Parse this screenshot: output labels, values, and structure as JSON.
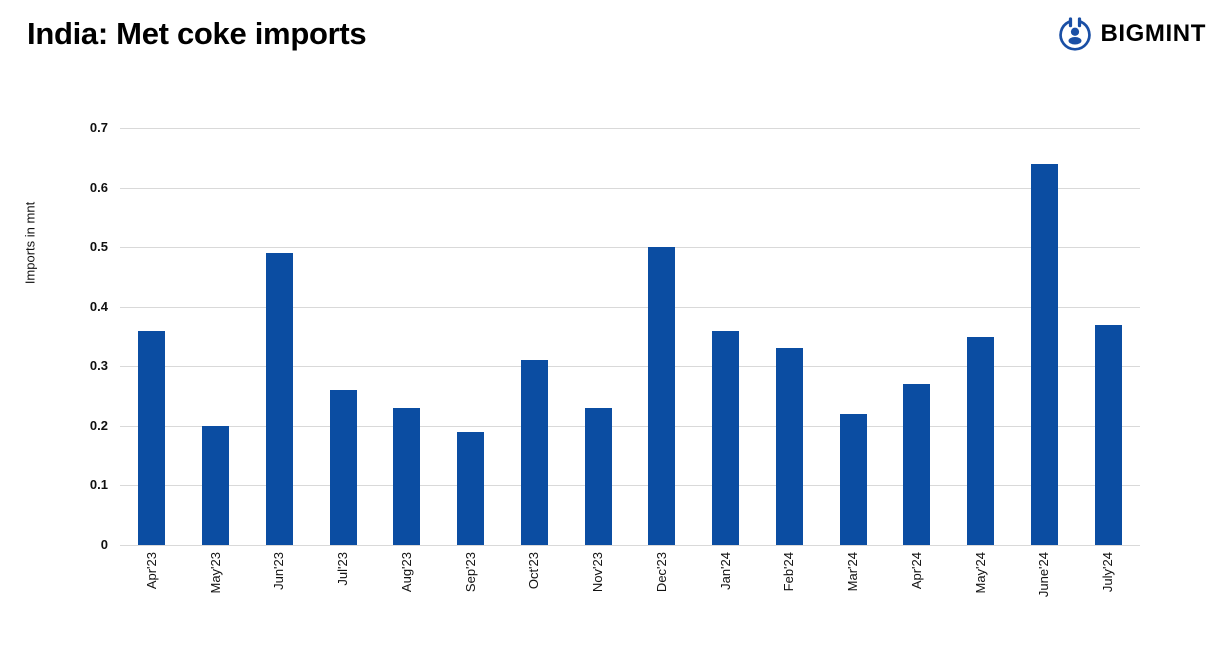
{
  "header": {
    "title": "India: Met coke imports",
    "brand": "BIGMINT",
    "brand_color": "#1a4fa5"
  },
  "chart_data": {
    "type": "bar",
    "title": "India: Met coke imports",
    "categories": [
      "Apr'23",
      "May'23",
      "Jun'23",
      "Jul'23",
      "Aug'23",
      "Sep'23",
      "Oct'23",
      "Nov'23",
      "Dec'23",
      "Jan'24",
      "Feb'24",
      "Mar'24",
      "Apr'24",
      "May'24",
      "June'24",
      "July'24"
    ],
    "values": [
      0.36,
      0.2,
      0.49,
      0.26,
      0.23,
      0.19,
      0.31,
      0.23,
      0.5,
      0.36,
      0.33,
      0.22,
      0.27,
      0.35,
      0.64,
      0.37
    ],
    "xlabel": "",
    "ylabel": "Imports in mnt",
    "ylim": [
      0,
      0.7
    ],
    "ytick_step": 0.1,
    "yticks": [
      "0",
      "0.1",
      "0.2",
      "0.3",
      "0.4",
      "0.5",
      "0.6",
      "0.7"
    ],
    "grid": true,
    "legend": "none",
    "bar_color": "#0b4da2",
    "gridline_color": "#d9d9d9"
  }
}
